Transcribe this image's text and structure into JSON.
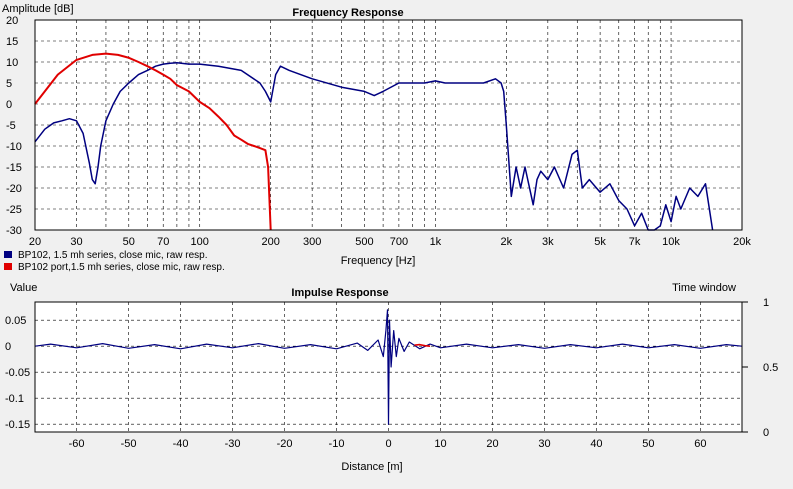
{
  "chart_data": [
    {
      "type": "line",
      "title": "Frequency Response",
      "ylabel": "Amplitude [dB]",
      "xlabel": "Frequency [Hz]",
      "xscale": "log",
      "xlim": [
        20,
        20000
      ],
      "ylim": [
        -30,
        20
      ],
      "grid": true,
      "legend_placement": "bottom-left",
      "x_ticks": [
        {
          "value": 20,
          "label": "20"
        },
        {
          "value": 30,
          "label": "30"
        },
        {
          "value": 50,
          "label": "50"
        },
        {
          "value": 70,
          "label": "70"
        },
        {
          "value": 100,
          "label": "100"
        },
        {
          "value": 200,
          "label": "200"
        },
        {
          "value": 300,
          "label": "300"
        },
        {
          "value": 500,
          "label": "500"
        },
        {
          "value": 700,
          "label": "700"
        },
        {
          "value": 1000,
          "label": "1k"
        },
        {
          "value": 2000,
          "label": "2k"
        },
        {
          "value": 3000,
          "label": "3k"
        },
        {
          "value": 5000,
          "label": "5k"
        },
        {
          "value": 7000,
          "label": "7k"
        },
        {
          "value": 10000,
          "label": "10k"
        },
        {
          "value": 20000,
          "label": "20k"
        }
      ],
      "y_ticks": [
        {
          "value": 20,
          "label": "20"
        },
        {
          "value": 15,
          "label": "15"
        },
        {
          "value": 10,
          "label": "10"
        },
        {
          "value": 5,
          "label": "5"
        },
        {
          "value": 0,
          "label": "0"
        },
        {
          "value": -5,
          "label": "-5"
        },
        {
          "value": -10,
          "label": "-10"
        },
        {
          "value": -15,
          "label": "-15"
        },
        {
          "value": -20,
          "label": "-20"
        },
        {
          "value": -25,
          "label": "-25"
        },
        {
          "value": -30,
          "label": "-30"
        }
      ],
      "series": [
        {
          "name": "BP102, 1.5 mh series, close mic, raw resp.",
          "color": "#000080",
          "x": [
            20,
            22,
            24,
            26,
            28,
            30,
            32,
            34,
            35,
            36,
            37,
            38,
            40,
            43,
            46,
            50,
            55,
            60,
            65,
            70,
            75,
            80,
            90,
            100,
            120,
            150,
            180,
            190,
            200,
            210,
            220,
            240,
            300,
            400,
            500,
            550,
            600,
            700,
            800,
            900,
            1000,
            1100,
            1200,
            1400,
            1600,
            1800,
            1900,
            1950,
            2000,
            2100,
            2200,
            2300,
            2400,
            2600,
            2700,
            2800,
            3000,
            3200,
            3500,
            3800,
            4000,
            4200,
            4500,
            5000,
            5500,
            6000,
            6500,
            7000,
            7500,
            8000,
            8500,
            9000,
            9500,
            10000,
            10500,
            11000,
            12000,
            13000,
            14000,
            15000
          ],
          "y": [
            -9,
            -6,
            -4.5,
            -4,
            -3.5,
            -4,
            -7,
            -14,
            -18,
            -19,
            -15,
            -10,
            -4,
            0,
            3,
            5,
            7,
            8,
            9,
            9.5,
            9.7,
            9.8,
            9.5,
            9.5,
            9,
            8,
            5,
            3,
            0.5,
            7,
            9,
            8,
            6,
            4,
            3,
            2,
            3,
            5,
            5,
            5,
            5.5,
            5,
            5,
            5,
            5,
            6,
            5,
            3,
            -5,
            -22,
            -15,
            -20,
            -15,
            -24,
            -18,
            -16,
            -18,
            -15,
            -20,
            -12,
            -11,
            -20,
            -18,
            -21,
            -19,
            -23,
            -25,
            -29,
            -26,
            -30,
            -30,
            -29,
            -24,
            -28,
            -22,
            -25,
            -20,
            -22,
            -19,
            -30
          ]
        },
        {
          "name": "BP102 port,1.5 mh series, close mic, raw resp.",
          "color": "#e00000",
          "x": [
            20,
            22,
            25,
            30,
            35,
            40,
            45,
            50,
            55,
            60,
            65,
            70,
            75,
            80,
            90,
            100,
            110,
            120,
            130,
            140,
            150,
            160,
            170,
            180,
            190,
            195,
            200
          ],
          "y": [
            0,
            3,
            7,
            10.5,
            11.7,
            12,
            11.7,
            11,
            10,
            9,
            8,
            7,
            6,
            4.5,
            3,
            0.5,
            -1,
            -3,
            -5,
            -7.5,
            -8.5,
            -9.5,
            -10,
            -10.5,
            -11,
            -15,
            -30
          ]
        }
      ]
    },
    {
      "type": "line",
      "title": "Impulse Response",
      "ylabel": "Value",
      "xlabel": "Distance [m]",
      "xlim": [
        -68,
        68
      ],
      "ylim": [
        -0.165,
        0.085
      ],
      "y2label": "Time window",
      "y2lim": [
        0,
        1
      ],
      "grid": true,
      "x_ticks": [
        -60,
        -50,
        -40,
        -30,
        -20,
        -10,
        0,
        10,
        20,
        30,
        40,
        50,
        60
      ],
      "y_ticks": [
        {
          "value": 0.05,
          "label": "0.05"
        },
        {
          "value": 0,
          "label": "0"
        },
        {
          "value": -0.05,
          "label": "-0.05"
        },
        {
          "value": -0.1,
          "label": "-0.1"
        },
        {
          "value": -0.15,
          "label": "-0.15"
        }
      ],
      "y2_ticks": [
        {
          "value": 1,
          "label": "1"
        },
        {
          "value": 0.5,
          "label": "0.5"
        },
        {
          "value": 0,
          "label": "0"
        }
      ],
      "series": [
        {
          "color": "#000080",
          "x": [
            -68,
            -65,
            -60,
            -55,
            -50,
            -45,
            -40,
            -35,
            -30,
            -25,
            -20,
            -15,
            -10,
            -6,
            -4,
            -2,
            -1,
            -0.5,
            -0.2,
            0,
            0.2,
            0.5,
            1,
            1.5,
            2,
            3,
            4,
            6,
            8,
            10,
            15,
            20,
            25,
            30,
            35,
            40,
            45,
            50,
            55,
            60,
            65,
            68
          ],
          "y": [
            0,
            0.004,
            -0.003,
            0.005,
            -0.004,
            0.003,
            -0.005,
            0.004,
            -0.003,
            0.005,
            -0.004,
            0.003,
            -0.005,
            0.006,
            -0.008,
            0.012,
            -0.02,
            0.03,
            0.07,
            -0.15,
            0.05,
            -0.04,
            0.03,
            -0.02,
            0.015,
            -0.01,
            0.008,
            -0.005,
            0.004,
            -0.003,
            0.004,
            -0.003,
            0.003,
            -0.004,
            0.003,
            -0.003,
            0.004,
            -0.003,
            0.003,
            -0.004,
            0.003,
            0
          ]
        },
        {
          "color": "#e00000",
          "x": [
            5,
            6,
            7,
            8
          ],
          "y": [
            0.002,
            0.003,
            0.001,
            0
          ]
        }
      ]
    }
  ]
}
